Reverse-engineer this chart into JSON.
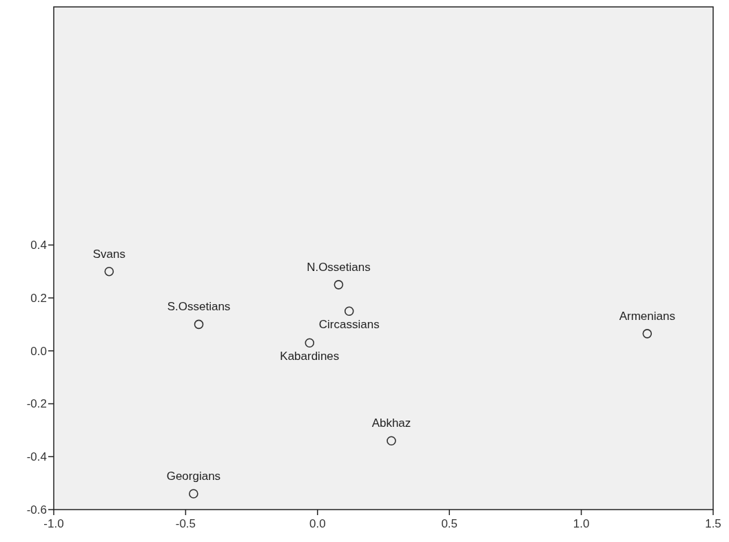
{
  "chart_data": {
    "type": "scatter",
    "x": [
      -0.79,
      -0.45,
      0.08,
      0.12,
      -0.03,
      1.25,
      0.28,
      -0.47
    ],
    "values": [
      0.3,
      0.1,
      0.25,
      0.15,
      0.03,
      0.065,
      -0.34,
      -0.54
    ],
    "color": "#333333",
    "marker": "circle",
    "xlim": [
      -1.0,
      1.5
    ],
    "ylim": [
      -0.6,
      1.3
    ],
    "xticks": [
      {
        "value": -1,
        "label": "-1.0"
      },
      {
        "value": -0.5,
        "label": "-0.5"
      },
      {
        "value": 0,
        "label": "0.0"
      },
      {
        "value": 0.5,
        "label": "0.5"
      },
      {
        "value": 1,
        "label": "1.0"
      },
      {
        "value": 1.5,
        "label": "1.5"
      }
    ],
    "yticks": [
      {
        "value": -0.6,
        "label": "-0.6"
      },
      {
        "value": -0.4,
        "label": "-0.4"
      },
      {
        "value": -0.2,
        "label": "-0.2"
      },
      {
        "value": 0,
        "label": "0.0"
      },
      {
        "value": 0.2,
        "label": "0.2"
      },
      {
        "value": 0.4,
        "label": "0.4"
      }
    ],
    "grid": false,
    "annotations": [
      {
        "text": "Svans",
        "x": -0.79,
        "y": 0.3
      },
      {
        "text": "S.Ossetians",
        "x": -0.45,
        "y": 0.1
      },
      {
        "text": "N.Ossetians",
        "x": 0.08,
        "y": 0.25
      },
      {
        "text": "Circassians",
        "x": 0.12,
        "y": 0.15
      },
      {
        "text": "Kabardines",
        "x": -0.03,
        "y": 0.03
      },
      {
        "text": "Armenians",
        "x": 1.25,
        "y": 0.065
      },
      {
        "text": "Abkhaz",
        "x": 0.28,
        "y": -0.34
      },
      {
        "text": "Georgians",
        "x": -0.47,
        "y": -0.54
      }
    ]
  }
}
